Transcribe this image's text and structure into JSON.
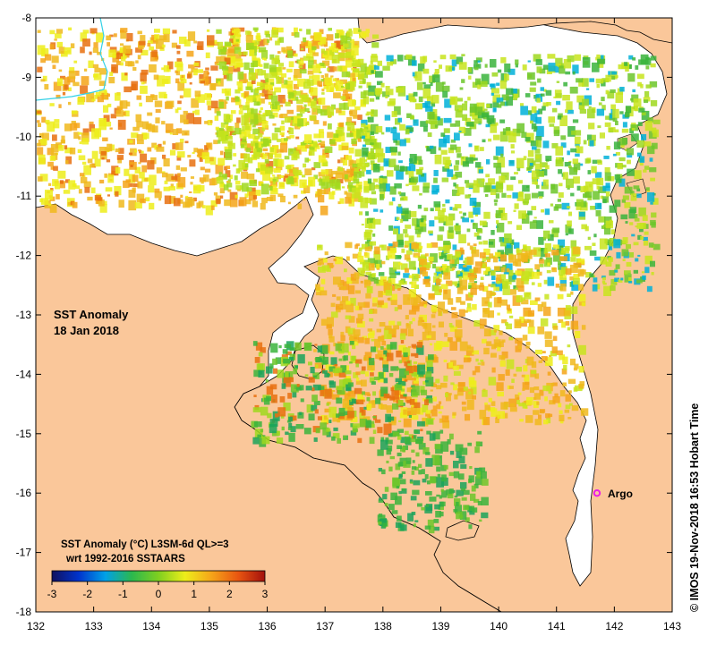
{
  "map": {
    "title_line1": "SST Anomaly",
    "title_line2": "18 Jan 2018",
    "x_ticks": [
      132,
      133,
      134,
      135,
      136,
      137,
      138,
      139,
      140,
      141,
      142,
      143
    ],
    "y_ticks": [
      -8,
      -9,
      -10,
      -11,
      -12,
      -13,
      -14,
      -15,
      -16,
      -17,
      -18
    ],
    "lon_range": [
      132,
      143
    ],
    "lat_range": [
      -18,
      -8
    ],
    "colors": {
      "land": "#fac79a",
      "no_data": "#ffffff",
      "coastline": "#000000",
      "river": "#34d1e6",
      "marker": "#e81ee8"
    }
  },
  "marker": {
    "label": "Argo",
    "lon": 141.7,
    "lat": -16.0
  },
  "legend": {
    "title_line1": "SST Anomaly (°C) L3SM-6d QL>=3",
    "title_line2": "wrt 1992-2016 SSTAARS",
    "tick_labels": [
      "-3",
      "-2",
      "-1",
      "0",
      "1",
      "2",
      "3"
    ],
    "range": [
      -3,
      3
    ],
    "colorscale": [
      "#11115e",
      "#0033cc",
      "#00a0e8",
      "#2bb84e",
      "#7fcf20",
      "#eded1a",
      "#f5a419",
      "#e85511",
      "#a3100c"
    ]
  },
  "credit": "© IMOS 19-Nov-2018 16:53 Hobart Time"
}
